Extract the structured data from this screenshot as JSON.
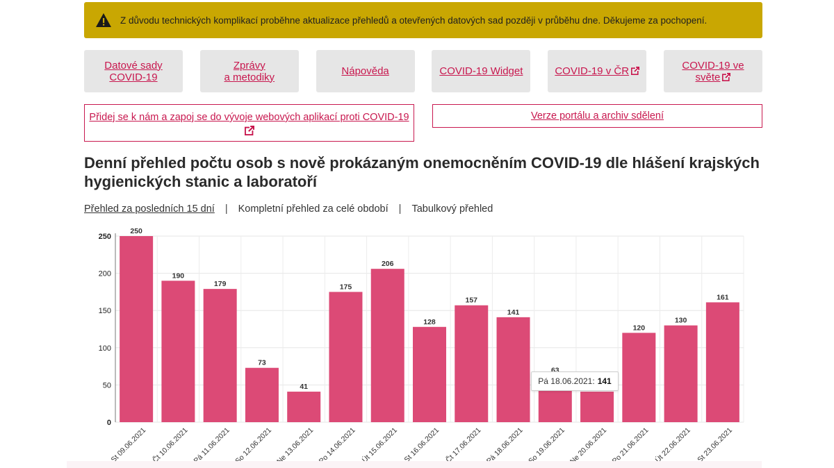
{
  "alert": {
    "text": "Z důvodu technických komplikací proběhne aktualizace přehledů a otevřených datových sad později v průběhu dne. Děkujeme za pochopení.",
    "icon": "warning-icon"
  },
  "nav": {
    "tiles": [
      {
        "line1": "Datové sady",
        "line2": "COVID-19",
        "external": false
      },
      {
        "line1": "Zprávy",
        "line2": "a metodiky",
        "external": false
      },
      {
        "line1": "Nápověda",
        "line2": "",
        "external": false
      },
      {
        "line1": "COVID-19 Widget",
        "line2": "",
        "external": false
      },
      {
        "line1": "COVID-19 v ČR",
        "line2": "",
        "external": true
      },
      {
        "line1": "COVID-19 ve",
        "line2": "světe",
        "external": true
      }
    ],
    "join_label": "Přidej se k nám a zapoj se do vývoje webových aplikací proti COVID-19",
    "archive_label": "Verze portálu a archiv sdělení"
  },
  "page": {
    "title": "Denní přehled počtu osob s nově prokázaným onemocněním COVID-19 dle hlášení krajských hygienických stanic a laboratoří"
  },
  "subnav": {
    "items": [
      "Přehled za posledních 15 dní",
      "Kompletní přehled za celé období",
      "Tabulkový přehled"
    ],
    "separator": "|"
  },
  "tooltip": {
    "label": "Pá 18.06.2021:",
    "value": "141"
  },
  "colors": {
    "bar": "#dc4a76",
    "accent": "#c8174e",
    "alert_bg": "#c9a702"
  },
  "chart_data": {
    "type": "bar",
    "categories": [
      "St 09.06.2021",
      "Čt 10.06.2021",
      "Pá 11.06.2021",
      "So 12.06.2021",
      "Ne 13.06.2021",
      "Po 14.06.2021",
      "Út 15.06.2021",
      "St 16.06.2021",
      "Čt 17.06.2021",
      "Pá 18.06.2021",
      "So 19.06.2021",
      "Ne 20.06.2021",
      "Po 21.06.2021",
      "Út 22.06.2021",
      "St 23.06.2021"
    ],
    "values": [
      250,
      190,
      179,
      73,
      41,
      175,
      206,
      128,
      157,
      141,
      63,
      41,
      120,
      130,
      161
    ],
    "value_labels": [
      "250",
      "190",
      "179",
      "73",
      "41",
      "175",
      "206",
      "128",
      "157",
      "141",
      "63",
      "",
      "120",
      "130",
      "161"
    ],
    "y_ticks": [
      0,
      50,
      100,
      150,
      200,
      250
    ],
    "ylim": [
      0,
      250
    ],
    "grid": true,
    "highlighted_index": 9
  }
}
